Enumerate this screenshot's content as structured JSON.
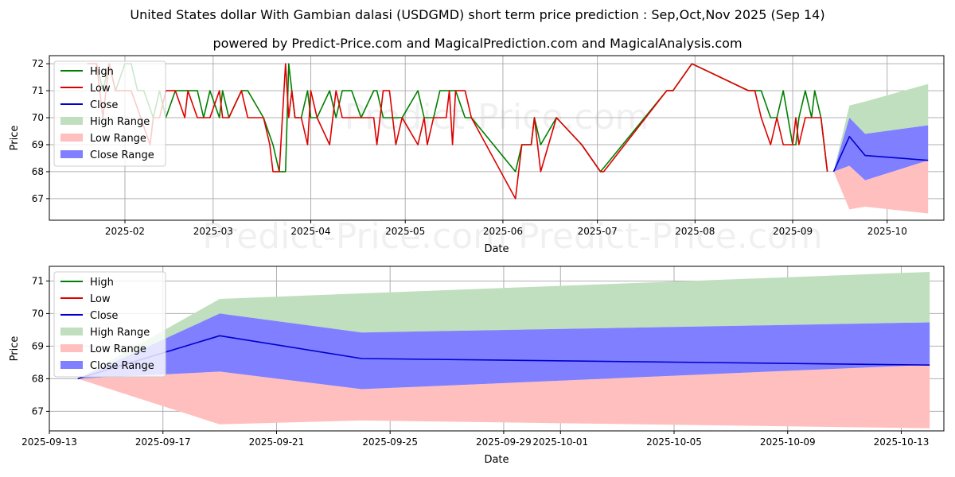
{
  "title": "United States dollar With Gambian dalasi (USDGMD) short term price prediction : Sep,Oct,Nov 2025 (Sep 14)",
  "subtitle": "powered by Predict-Price.com and MagicalPrediction.com and MagicalAnalysis.com",
  "watermark": "Predict-Price.com",
  "colors": {
    "high": "#008000",
    "low": "#dd0000",
    "close": "#0000cc",
    "high_range": "#bfdfbf",
    "low_range": "#ffbfbf",
    "close_range": "#7f7fff",
    "grid": "#b0b0b0"
  },
  "chart_data": [
    {
      "type": "line",
      "xlabel": "Date",
      "ylabel": "Price",
      "xlim": [
        "2025-01-08",
        "2025-10-19"
      ],
      "ylim": [
        66.2,
        72.3
      ],
      "xticks": [
        "2025-02",
        "2025-03",
        "2025-04",
        "2025-05",
        "2025-06",
        "2025-07",
        "2025-08",
        "2025-09",
        "2025-10"
      ],
      "xtick_dates": [
        "2025-02-01",
        "2025-03-01",
        "2025-04-01",
        "2025-05-01",
        "2025-06-01",
        "2025-07-01",
        "2025-08-01",
        "2025-09-01",
        "2025-10-01"
      ],
      "yticks": [
        67,
        68,
        69,
        70,
        71,
        72
      ],
      "grid": true,
      "legend": "upper-left",
      "legend_entries": [
        "High",
        "Low",
        "Close",
        "High Range",
        "Low Range",
        "Close Range"
      ],
      "series": [
        {
          "name": "High",
          "x": [
            "2025-01-20",
            "2025-01-23",
            "2025-01-25",
            "2025-01-27",
            "2025-01-29",
            "2025-02-01",
            "2025-02-03",
            "2025-02-05",
            "2025-02-07",
            "2025-02-10",
            "2025-02-12",
            "2025-02-14",
            "2025-02-17",
            "2025-02-20",
            "2025-02-22",
            "2025-02-24",
            "2025-02-26",
            "2025-02-28",
            "2025-03-03",
            "2025-03-04",
            "2025-03-06",
            "2025-03-10",
            "2025-03-12",
            "2025-03-17",
            "2025-03-20",
            "2025-03-22",
            "2025-03-24",
            "2025-03-25",
            "2025-03-26",
            "2025-03-27",
            "2025-03-29",
            "2025-03-31",
            "2025-04-01",
            "2025-04-03",
            "2025-04-07",
            "2025-04-09",
            "2025-04-11",
            "2025-04-14",
            "2025-04-17",
            "2025-04-21",
            "2025-04-22",
            "2025-04-24",
            "2025-04-26",
            "2025-04-28",
            "2025-04-30",
            "2025-05-05",
            "2025-05-07",
            "2025-05-08",
            "2025-05-10",
            "2025-05-12",
            "2025-05-15",
            "2025-05-16",
            "2025-05-17",
            "2025-05-20",
            "2025-05-22",
            "2025-06-05",
            "2025-06-07",
            "2025-06-10",
            "2025-06-11",
            "2025-06-13",
            "2025-06-18",
            "2025-06-26",
            "2025-07-02",
            "2025-07-23",
            "2025-07-25",
            "2025-07-31",
            "2025-08-18",
            "2025-08-20",
            "2025-08-22",
            "2025-08-25",
            "2025-08-27",
            "2025-08-29",
            "2025-09-01",
            "2025-09-02",
            "2025-09-03",
            "2025-09-05",
            "2025-09-07",
            "2025-09-08",
            "2025-09-10",
            "2025-09-12"
          ],
          "values": [
            72,
            72,
            71,
            72,
            71,
            72,
            72,
            71,
            71,
            70,
            71,
            70,
            71,
            71,
            71,
            71,
            70,
            71,
            70,
            71,
            70,
            71,
            71,
            70,
            69,
            68,
            68,
            72,
            71,
            70,
            70,
            71,
            70,
            70,
            71,
            70,
            71,
            71,
            70,
            71,
            71,
            70,
            70,
            70,
            70,
            71,
            70,
            70,
            70,
            71,
            71,
            71,
            71,
            70,
            70,
            68,
            69,
            69,
            70,
            69,
            70,
            69,
            68,
            71,
            71,
            72,
            71,
            71,
            71,
            70,
            70,
            71,
            69,
            69,
            70,
            71,
            70,
            71,
            70,
            68
          ]
        },
        {
          "name": "Low",
          "x": [
            "2025-01-20",
            "2025-01-23",
            "2025-01-25",
            "2025-01-27",
            "2025-01-29",
            "2025-02-01",
            "2025-02-03",
            "2025-02-06",
            "2025-02-09",
            "2025-02-10",
            "2025-02-12",
            "2025-02-14",
            "2025-02-17",
            "2025-02-20",
            "2025-02-21",
            "2025-02-24",
            "2025-02-25",
            "2025-02-28",
            "2025-03-03",
            "2025-03-04",
            "2025-03-06",
            "2025-03-10",
            "2025-03-12",
            "2025-03-17",
            "2025-03-19",
            "2025-03-20",
            "2025-03-22",
            "2025-03-24",
            "2025-03-25",
            "2025-03-26",
            "2025-03-27",
            "2025-03-29",
            "2025-03-31",
            "2025-04-01",
            "2025-04-03",
            "2025-04-07",
            "2025-04-09",
            "2025-04-11",
            "2025-04-14",
            "2025-04-17",
            "2025-04-21",
            "2025-04-22",
            "2025-04-24",
            "2025-04-26",
            "2025-04-28",
            "2025-04-30",
            "2025-05-05",
            "2025-05-07",
            "2025-05-08",
            "2025-05-10",
            "2025-05-12",
            "2025-05-14",
            "2025-05-15",
            "2025-05-16",
            "2025-05-17",
            "2025-05-20",
            "2025-05-22",
            "2025-06-05",
            "2025-06-07",
            "2025-06-10",
            "2025-06-11",
            "2025-06-13",
            "2025-06-18",
            "2025-06-26",
            "2025-07-02",
            "2025-07-03",
            "2025-07-23",
            "2025-07-25",
            "2025-07-31",
            "2025-08-18",
            "2025-08-20",
            "2025-08-22",
            "2025-08-25",
            "2025-08-27",
            "2025-08-29",
            "2025-09-01",
            "2025-09-02",
            "2025-09-03",
            "2025-09-05",
            "2025-09-07",
            "2025-09-08",
            "2025-09-10",
            "2025-09-12"
          ],
          "values": [
            72,
            72,
            70,
            72,
            71,
            71,
            71,
            70,
            69,
            70,
            70,
            71,
            71,
            70,
            71,
            70,
            70,
            70,
            71,
            70,
            70,
            71,
            70,
            70,
            69,
            68,
            68,
            72,
            70,
            71,
            70,
            70,
            69,
            71,
            70,
            69,
            71,
            70,
            70,
            70,
            70,
            69,
            71,
            71,
            69,
            70,
            69,
            70,
            69,
            70,
            70,
            70,
            71,
            69,
            71,
            71,
            70,
            67,
            69,
            69,
            70,
            68,
            70,
            69,
            68,
            68,
            71,
            71,
            72,
            71,
            71,
            70,
            69,
            70,
            69,
            69,
            70,
            69,
            70,
            70,
            70,
            70,
            68
          ]
        },
        {
          "name": "Close",
          "x": [
            "2025-09-14",
            "2025-09-19",
            "2025-09-24",
            "2025-10-14"
          ],
          "values": [
            68.0,
            69.3,
            68.6,
            68.42
          ]
        },
        {
          "name": "High Range",
          "x": [
            "2025-09-14",
            "2025-09-19",
            "2025-09-24",
            "2025-10-14"
          ],
          "upper": [
            68.0,
            70.45,
            70.6,
            71.25
          ],
          "lower": [
            68.0,
            70.0,
            69.4,
            69.72
          ]
        },
        {
          "name": "Low Range",
          "x": [
            "2025-09-14",
            "2025-09-19",
            "2025-09-24",
            "2025-10-14"
          ],
          "upper": [
            68.0,
            68.22,
            67.68,
            68.42
          ],
          "lower": [
            68.0,
            66.6,
            66.7,
            66.45
          ]
        },
        {
          "name": "Close Range",
          "x": [
            "2025-09-14",
            "2025-09-19",
            "2025-09-24",
            "2025-10-14"
          ],
          "upper": [
            68.0,
            70.0,
            69.4,
            69.72
          ],
          "lower": [
            68.0,
            68.22,
            67.68,
            68.42
          ]
        }
      ]
    },
    {
      "type": "area",
      "xlabel": "Date",
      "ylabel": "Price",
      "xlim": [
        "2025-09-13 00:00",
        "2025-10-14 12:00"
      ],
      "ylim": [
        66.4,
        71.45
      ],
      "xticks": [
        "2025-09-13",
        "2025-09-17",
        "2025-09-21",
        "2025-09-25",
        "2025-09-29",
        "2025-10-01",
        "2025-10-05",
        "2025-10-09",
        "2025-10-13"
      ],
      "yticks": [
        67,
        68,
        69,
        70,
        71
      ],
      "grid": true,
      "legend": "upper-left",
      "legend_entries": [
        "High",
        "Low",
        "Close",
        "High Range",
        "Low Range",
        "Close Range"
      ],
      "series": [
        {
          "name": "Close",
          "x": [
            "2025-09-14",
            "2025-09-19",
            "2025-09-24",
            "2025-10-14"
          ],
          "values": [
            68.0,
            69.32,
            68.62,
            68.42
          ]
        },
        {
          "name": "High Range",
          "x": [
            "2025-09-14",
            "2025-09-19",
            "2025-09-24",
            "2025-10-14"
          ],
          "upper": [
            68.0,
            70.45,
            70.62,
            71.28
          ],
          "lower": [
            68.0,
            70.0,
            69.42,
            69.73
          ]
        },
        {
          "name": "Low Range",
          "x": [
            "2025-09-14",
            "2025-09-19",
            "2025-09-24",
            "2025-10-14"
          ],
          "upper": [
            68.0,
            68.22,
            67.68,
            68.43
          ],
          "lower": [
            68.0,
            66.6,
            66.72,
            66.48
          ]
        },
        {
          "name": "Close Range",
          "x": [
            "2025-09-14",
            "2025-09-19",
            "2025-09-24",
            "2025-10-14"
          ],
          "upper": [
            68.0,
            70.0,
            69.42,
            69.73
          ],
          "lower": [
            68.0,
            68.22,
            67.68,
            68.43
          ]
        }
      ]
    }
  ]
}
